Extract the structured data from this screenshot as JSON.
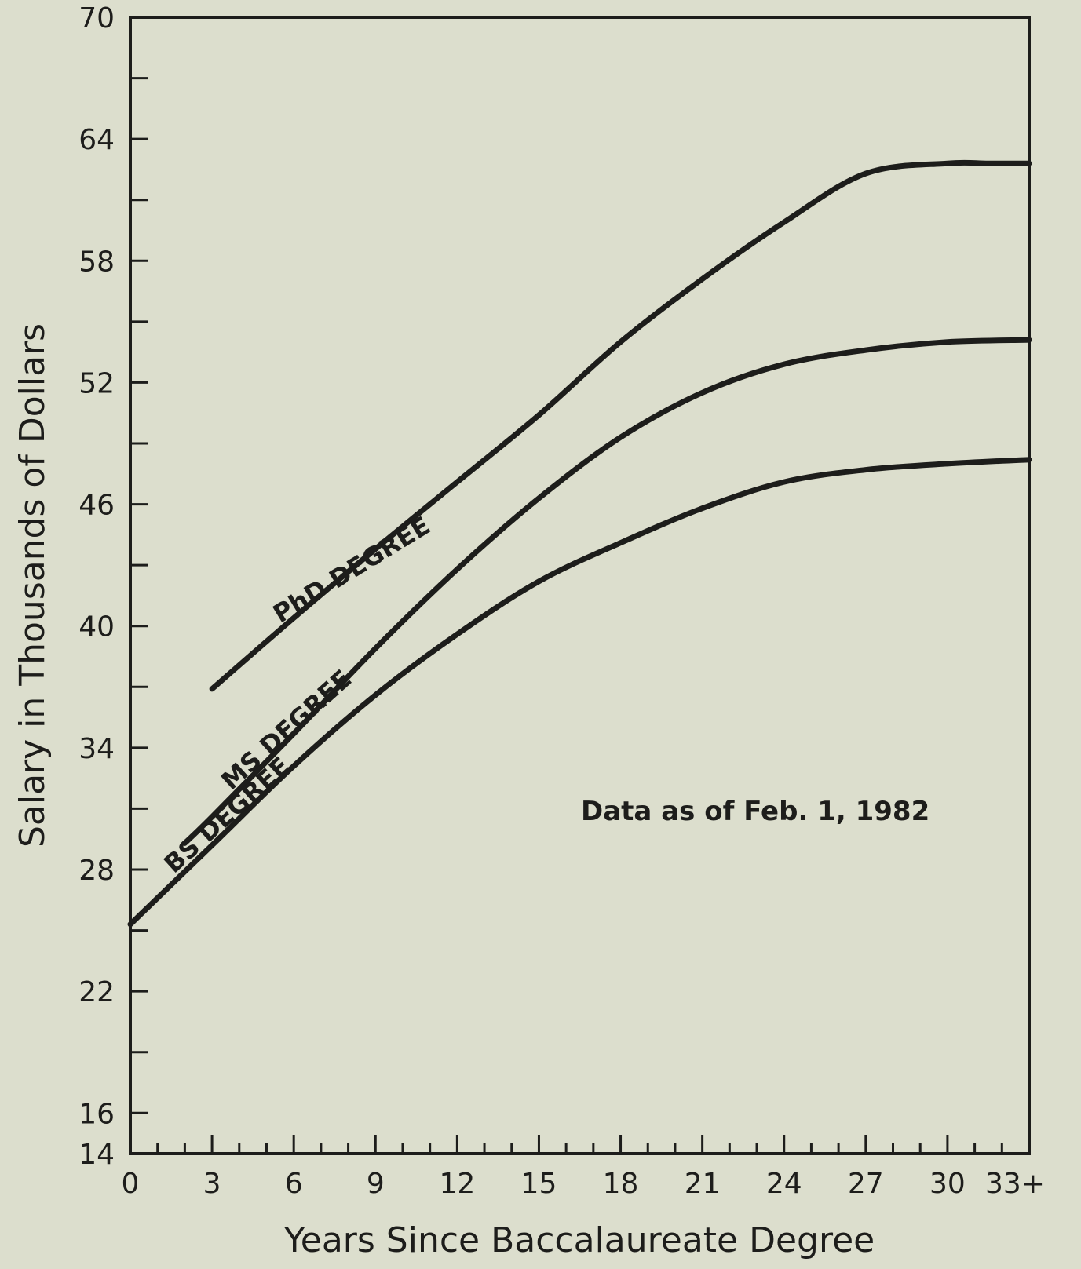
{
  "chart_data": {
    "type": "line",
    "title": "",
    "xlabel": "Years Since Baccalaureate Degree",
    "ylabel": "Salary in Thousands of Dollars",
    "x_ticks": [
      "0",
      "3",
      "6",
      "9",
      "12",
      "15",
      "18",
      "21",
      "24",
      "27",
      "30",
      "33+"
    ],
    "y_ticks": [
      "14",
      "16",
      "22",
      "28",
      "34",
      "40",
      "46",
      "52",
      "58",
      "64",
      "70"
    ],
    "xlim": [
      0,
      33
    ],
    "ylim": [
      14,
      70
    ],
    "grid": false,
    "annotation": "Data as of Feb. 1, 1982",
    "series": [
      {
        "name": "PhD DEGREE",
        "x": [
          3,
          6,
          9,
          12,
          15,
          18,
          21,
          24,
          27,
          30,
          31.5,
          33
        ],
        "y": [
          36.9,
          40.4,
          43.8,
          47.1,
          50.4,
          54.0,
          57.1,
          59.9,
          62.3,
          62.8,
          62.8,
          62.8
        ]
      },
      {
        "name": "MS DEGREE",
        "x": [
          2,
          3,
          6,
          9,
          12,
          15,
          18,
          21,
          24,
          27,
          30,
          33
        ],
        "y": [
          29.3,
          30.6,
          34.7,
          38.9,
          42.8,
          46.3,
          49.3,
          51.5,
          52.9,
          53.6,
          54.0,
          54.1
        ]
      },
      {
        "name": "BS DEGREE",
        "x": [
          0,
          3,
          6,
          9,
          12,
          15,
          18,
          21,
          24,
          27,
          30,
          33
        ],
        "y": [
          25.3,
          29.2,
          33.1,
          36.6,
          39.6,
          42.2,
          44.1,
          45.8,
          47.1,
          47.7,
          48.0,
          48.2
        ]
      }
    ]
  }
}
